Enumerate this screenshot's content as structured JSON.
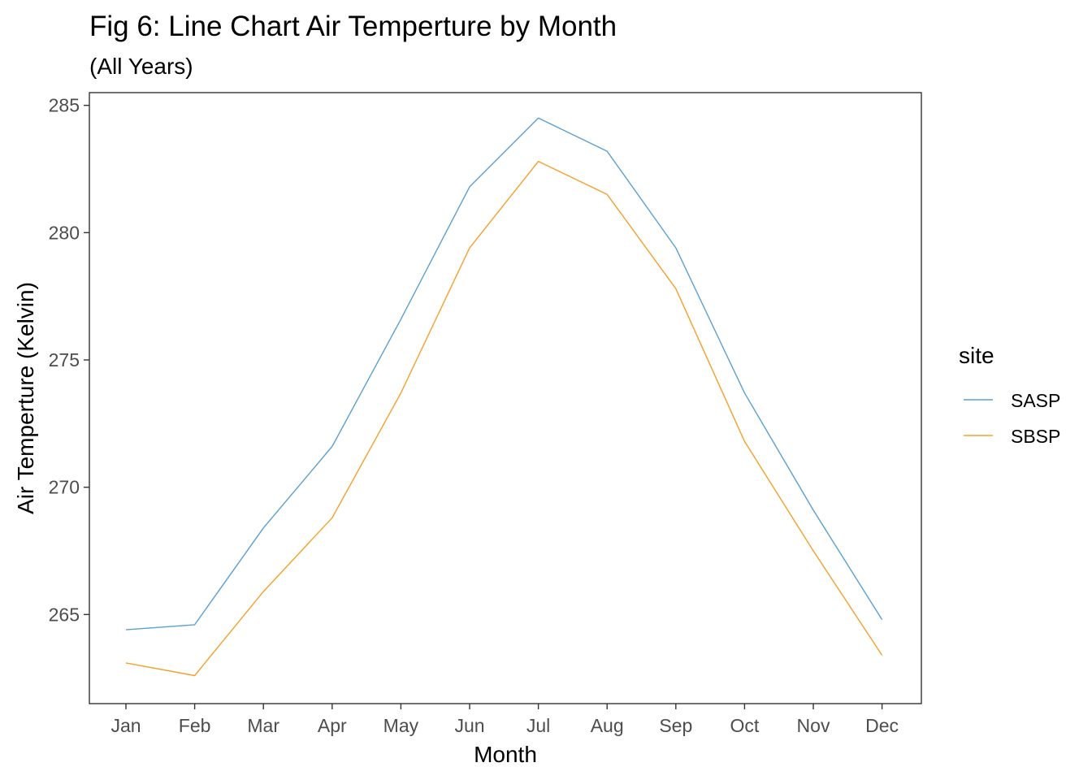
{
  "chart_data": {
    "type": "line",
    "title": "Fig 6: Line Chart Air Temperture by Month",
    "subtitle": "(All Years)",
    "xlabel": "Month",
    "ylabel": "Air Temperture (Kelvin)",
    "categories": [
      "Jan",
      "Feb",
      "Mar",
      "Apr",
      "May",
      "Jun",
      "Jul",
      "Aug",
      "Sep",
      "Oct",
      "Nov",
      "Dec"
    ],
    "ylim": [
      261.5,
      285.5
    ],
    "yticks": [
      265,
      270,
      275,
      280,
      285
    ],
    "grid": false,
    "legend": {
      "title": "site",
      "position": "right"
    },
    "series": [
      {
        "name": "SASP",
        "color": "#5aa0d0",
        "values": [
          264.4,
          264.6,
          268.4,
          271.6,
          276.6,
          281.8,
          284.5,
          283.2,
          279.4,
          273.7,
          269.1,
          264.8
        ]
      },
      {
        "name": "SBSP",
        "color": "#f4a02c",
        "values": [
          263.1,
          262.6,
          265.9,
          268.8,
          273.7,
          279.4,
          282.8,
          281.5,
          277.8,
          271.8,
          267.5,
          263.4
        ]
      }
    ]
  }
}
